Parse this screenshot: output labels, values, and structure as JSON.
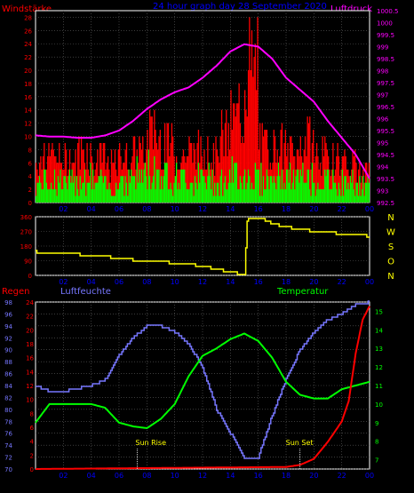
{
  "chart_data": [
    {
      "type": "bar",
      "title": "24 hour graph day 28 September 2020",
      "y_left_label": "Windstärke",
      "y_right_label": "Luftdruck",
      "y_left_ticks": [
        "0",
        "2",
        "4",
        "6",
        "8",
        "10",
        "12",
        "14",
        "16",
        "18",
        "20",
        "22",
        "24",
        "26",
        "28"
      ],
      "y_right_ticks": [
        "992.5",
        "993",
        "993.5",
        "994",
        "994.5",
        "995",
        "995.5",
        "996",
        "996.5",
        "997",
        "997.5",
        "998",
        "998.5",
        "999",
        "999.5",
        "1000",
        "1000.5"
      ],
      "x_ticks": [
        "02",
        "04",
        "06",
        "08",
        "10",
        "12",
        "14",
        "16",
        "18",
        "20",
        "22",
        "00"
      ],
      "ylim_left": [
        0,
        29
      ],
      "ylim_right": [
        992.5,
        1000.5
      ],
      "grid": true,
      "colors": {
        "wind_speed": "#00ff00",
        "gust": "#ff0000",
        "pressure": "#ff00ff",
        "left_label": "#ff0000",
        "right_label": "#ff00ff",
        "title": "#0000ff"
      },
      "pressure": {
        "hours": [
          0,
          1,
          2,
          3,
          4,
          5,
          6,
          7,
          8,
          9,
          10,
          11,
          12,
          13,
          14,
          15,
          16,
          17,
          18,
          19,
          20,
          21,
          22,
          23,
          24
        ],
        "values": [
          995.3,
          995.25,
          995.25,
          995.2,
          995.2,
          995.3,
          995.5,
          995.9,
          996.4,
          996.8,
          997.1,
          997.3,
          997.7,
          998.2,
          998.8,
          999.1,
          999.0,
          998.5,
          997.7,
          997.2,
          996.7,
          995.9,
          995.2,
          994.5,
          993.5
        ]
      },
      "wind_hourly_max": [
        5,
        6,
        5,
        6,
        5,
        4,
        6,
        7,
        8,
        7,
        6,
        6,
        6,
        5,
        7,
        7,
        6,
        6,
        6,
        6,
        5,
        5,
        5,
        4
      ],
      "gust_hourly_max": [
        9,
        9,
        9,
        11,
        9,
        8,
        10,
        10,
        14,
        12,
        10,
        11,
        10,
        14,
        18,
        28,
        12,
        12,
        10,
        13,
        10,
        9,
        8,
        6
      ]
    },
    {
      "type": "line",
      "y_left_ticks": [
        "0",
        "90",
        "180",
        "270",
        "360"
      ],
      "y_right_ticks": [
        "N",
        "W",
        "S",
        "O",
        "N"
      ],
      "x_ticks": [
        "02",
        "04",
        "06",
        "08",
        "10",
        "12",
        "14",
        "16",
        "18",
        "20",
        "22",
        "00"
      ],
      "ylim": [
        0,
        360
      ],
      "grid": true,
      "colors": {
        "direction": "#ffff00",
        "right_ticks": "#ffff00"
      },
      "wind_direction": {
        "hours": [
          0,
          1,
          2,
          3,
          4,
          5,
          6,
          7,
          8,
          9,
          10,
          11,
          12,
          13,
          14,
          15,
          15.2,
          16,
          17,
          18,
          19,
          20,
          21,
          22,
          23,
          24
        ],
        "values": [
          145,
          140,
          135,
          130,
          120,
          115,
          105,
          95,
          90,
          85,
          75,
          70,
          55,
          40,
          20,
          5,
          340,
          355,
          320,
          295,
          285,
          270,
          265,
          255,
          250,
          240
        ]
      }
    },
    {
      "type": "line",
      "y_left_label": "Regen",
      "y_mid_label": "Luftfeuchte",
      "y_right_label": "Temperatur",
      "y_left_ticks": [
        "0",
        "2",
        "4",
        "6",
        "8",
        "10",
        "12",
        "14",
        "16",
        "18",
        "20",
        "22",
        "24"
      ],
      "y_humidity_ticks": [
        "70",
        "72",
        "74",
        "76",
        "78",
        "80",
        "82",
        "84",
        "86",
        "88",
        "90",
        "92",
        "94",
        "96",
        "98"
      ],
      "y_temperature_ticks": [
        "7",
        "8",
        "9",
        "10",
        "11",
        "12",
        "13",
        "14",
        "15"
      ],
      "x_ticks": [
        "02",
        "04",
        "06",
        "08",
        "10",
        "12",
        "14",
        "16",
        "18",
        "20",
        "22",
        "00"
      ],
      "annotations": [
        "Sun Rise",
        "Sun Set"
      ],
      "grid": true,
      "colors": {
        "rain": "#ff0000",
        "humidity": "#7777ff",
        "temperature": "#00ff00",
        "annotations": "#ffff00",
        "left_label": "#ff0000",
        "mid_label": "#7777ff",
        "right_label": "#00ff00"
      },
      "humidity": {
        "hours": [
          0,
          1,
          2,
          3,
          4,
          5,
          6,
          7,
          8,
          9,
          10,
          11,
          12,
          13,
          14,
          15,
          16,
          17,
          18,
          19,
          20,
          21,
          22,
          23,
          24
        ],
        "values": [
          84,
          83,
          83,
          83.5,
          84,
          85,
          89,
          92,
          94,
          94,
          93,
          91,
          87,
          80,
          76,
          72,
          72,
          79,
          85,
          90,
          93,
          95,
          96,
          97.5,
          98
        ]
      },
      "temperature": {
        "hours": [
          0,
          1,
          2,
          3,
          4,
          5,
          6,
          7,
          8,
          9,
          10,
          11,
          12,
          13,
          14,
          15,
          16,
          17,
          18,
          19,
          20,
          21,
          22,
          23,
          24
        ],
        "values": [
          9.0,
          10.0,
          10.0,
          10.0,
          10.0,
          9.8,
          9.0,
          8.8,
          8.7,
          9.2,
          10.0,
          11.5,
          12.6,
          13.0,
          13.5,
          13.8,
          13.4,
          12.5,
          11.2,
          10.5,
          10.3,
          10.3,
          10.8,
          11.0,
          11.2
        ]
      },
      "rain": {
        "hours": [
          0,
          6,
          18,
          19,
          20,
          21,
          22,
          22.5,
          23,
          23.5,
          24
        ],
        "values": [
          0,
          0.1,
          0.3,
          0.6,
          1.5,
          4,
          7,
          10,
          17,
          22,
          24
        ]
      },
      "sun_rise_hour": 7.3,
      "sun_set_hour": 19.0
    }
  ]
}
